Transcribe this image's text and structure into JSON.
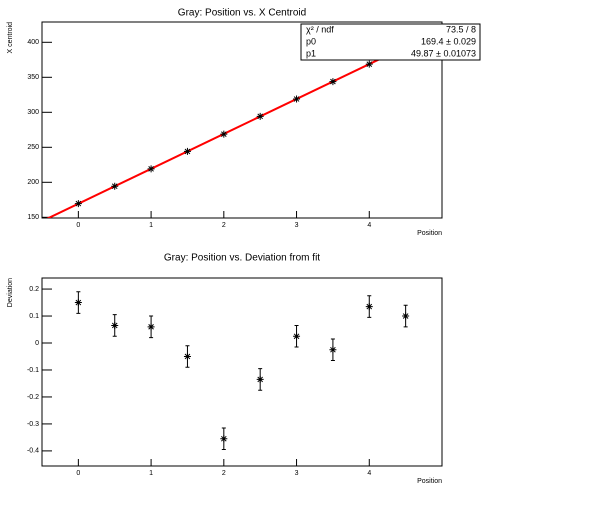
{
  "chart_data": [
    {
      "type": "scatter",
      "title": "Gray: Position vs. X Centroid",
      "x_label": "Position",
      "y_label": "X centroid",
      "x": [
        0,
        0.5,
        1,
        1.5,
        2,
        2.5,
        3,
        3.5,
        4,
        4.5
      ],
      "values": [
        169.55,
        194.4,
        219.2,
        244.1,
        268.8,
        294.2,
        319.0,
        343.9,
        368.8,
        393.6
      ],
      "marker_color": "#000000",
      "fit": {
        "p0": 169.4,
        "p1": 49.87,
        "color": "#ff0000"
      },
      "stats": [
        [
          "χ² / ndf",
          "73.5 / 8"
        ],
        [
          "p0",
          "169.4 ± 0.029"
        ],
        [
          "p1",
          "49.87 ± 0.01073"
        ]
      ],
      "xlim": [
        -0.5,
        5.0
      ],
      "xticks": [
        0,
        1,
        2,
        3,
        4
      ],
      "ylim": [
        149,
        429
      ],
      "yticks": [
        150,
        200,
        250,
        300,
        350,
        400
      ]
    },
    {
      "type": "errorbar",
      "title": "Gray: Position vs. Deviation from fit",
      "x_label": "Position",
      "y_label": "Deviation",
      "x": [
        0,
        0.5,
        1,
        1.5,
        2,
        2.5,
        3,
        3.5,
        4,
        4.5
      ],
      "values": [
        0.15,
        0.065,
        0.06,
        -0.05,
        -0.355,
        -0.135,
        0.025,
        -0.025,
        0.135,
        0.1
      ],
      "errors": [
        0.04,
        0.04,
        0.04,
        0.04,
        0.04,
        0.04,
        0.04,
        0.04,
        0.04,
        0.04
      ],
      "marker_color": "#000000",
      "xlim": [
        -0.5,
        5.0
      ],
      "xticks": [
        0,
        1,
        2,
        3,
        4
      ],
      "ylim": [
        -0.456,
        0.241
      ],
      "yticks": [
        0.2,
        0.1,
        0,
        -0.1,
        -0.2,
        -0.3,
        -0.4
      ]
    }
  ]
}
